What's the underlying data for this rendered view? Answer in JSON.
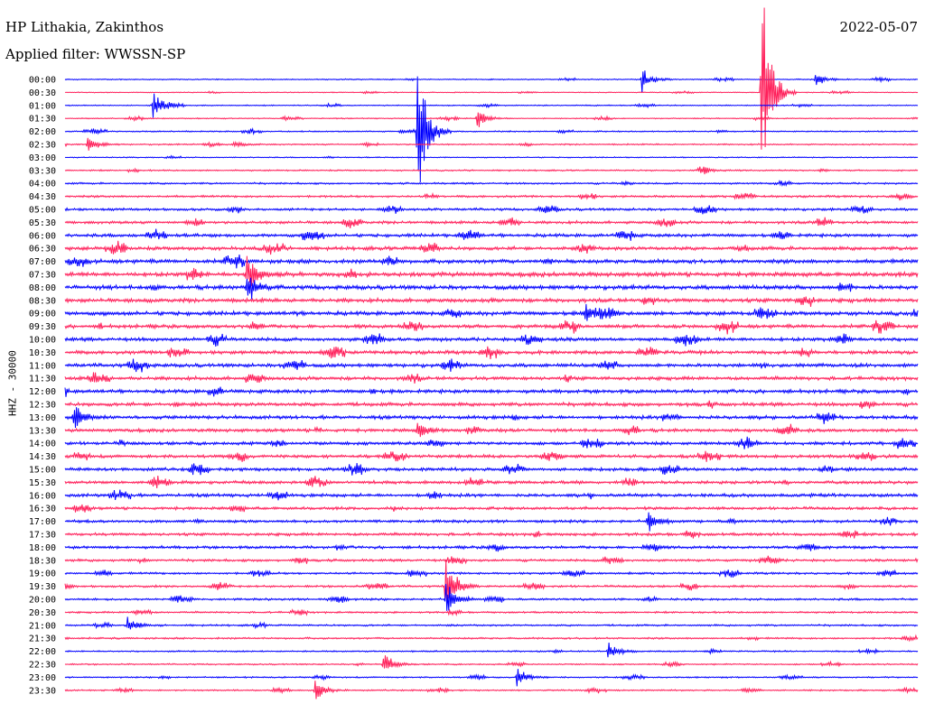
{
  "header": {
    "station": "HP Lithakia, Zakinthos",
    "date": "2022-05-07",
    "filter": "Applied filter: WWSSN-SP"
  },
  "channel_label": "HHZ - 30000",
  "colors": {
    "even_rows": "#0000ff",
    "odd_rows": "#ff1f5a"
  },
  "chart_data": {
    "type": "line",
    "title": "HP Lithakia, Zakinthos",
    "subtitle": "Applied filter: WWSSN-SP",
    "ylabel": "HHZ - 30000",
    "xlabel": "",
    "grid": false,
    "legend": "none",
    "row_interval_minutes": 30,
    "y_tick_labels": [
      "00:00",
      "00:30",
      "01:00",
      "01:30",
      "02:00",
      "02:30",
      "03:00",
      "03:30",
      "04:00",
      "04:30",
      "05:00",
      "05:30",
      "06:00",
      "06:30",
      "07:00",
      "07:30",
      "08:00",
      "08:30",
      "09:00",
      "09:30",
      "10:00",
      "10:30",
      "11:00",
      "11:30",
      "12:00",
      "12:30",
      "13:00",
      "13:30",
      "14:00",
      "14:30",
      "15:00",
      "15:30",
      "16:00",
      "16:30",
      "17:00",
      "17:30",
      "18:00",
      "18:30",
      "19:00",
      "19:30",
      "20:00",
      "20:30",
      "21:00",
      "21:30",
      "22:00",
      "22:30",
      "23:00",
      "23:30"
    ],
    "row_noise_level": [
      0.15,
      0.12,
      0.15,
      0.15,
      0.18,
      0.2,
      0.15,
      0.2,
      0.25,
      0.3,
      0.35,
      0.4,
      0.45,
      0.5,
      0.55,
      0.6,
      0.6,
      0.55,
      0.55,
      0.5,
      0.5,
      0.5,
      0.5,
      0.5,
      0.5,
      0.5,
      0.5,
      0.45,
      0.45,
      0.45,
      0.45,
      0.45,
      0.45,
      0.4,
      0.4,
      0.4,
      0.4,
      0.35,
      0.3,
      0.3,
      0.3,
      0.25,
      0.25,
      0.25,
      0.2,
      0.2,
      0.2,
      0.2
    ],
    "events": [
      {
        "row": 1,
        "minute": 24.5,
        "amplitude": 11
      },
      {
        "row": 0,
        "minute": 20.3,
        "amplitude": 1.3
      },
      {
        "row": 0,
        "minute": 26.4,
        "amplitude": 0.8
      },
      {
        "row": 2,
        "minute": 3.1,
        "amplitude": 1.5
      },
      {
        "row": 3,
        "minute": 14.5,
        "amplitude": 1.0
      },
      {
        "row": 4,
        "minute": 12.4,
        "amplitude": 8
      },
      {
        "row": 5,
        "minute": 0.8,
        "amplitude": 0.9
      },
      {
        "row": 5,
        "minute": 5.9,
        "amplitude": 0.4
      },
      {
        "row": 7,
        "minute": 22.3,
        "amplitude": 0.8
      },
      {
        "row": 15,
        "minute": 6.4,
        "amplitude": 2.5
      },
      {
        "row": 16,
        "minute": 6.4,
        "amplitude": 1.8
      },
      {
        "row": 18,
        "minute": 18.3,
        "amplitude": 1.4
      },
      {
        "row": 26,
        "minute": 0.3,
        "amplitude": 1.6
      },
      {
        "row": 27,
        "minute": 12.4,
        "amplitude": 1.0
      },
      {
        "row": 34,
        "minute": 20.5,
        "amplitude": 1.2
      },
      {
        "row": 39,
        "minute": 13.4,
        "amplitude": 3.5
      },
      {
        "row": 40,
        "minute": 13.4,
        "amplitude": 2.0
      },
      {
        "row": 42,
        "minute": 2.2,
        "amplitude": 1.0
      },
      {
        "row": 44,
        "minute": 19.1,
        "amplitude": 1.0
      },
      {
        "row": 45,
        "minute": 11.2,
        "amplitude": 1.3
      },
      {
        "row": 46,
        "minute": 15.9,
        "amplitude": 1.2
      },
      {
        "row": 47,
        "minute": 8.8,
        "amplitude": 1.1
      }
    ]
  }
}
